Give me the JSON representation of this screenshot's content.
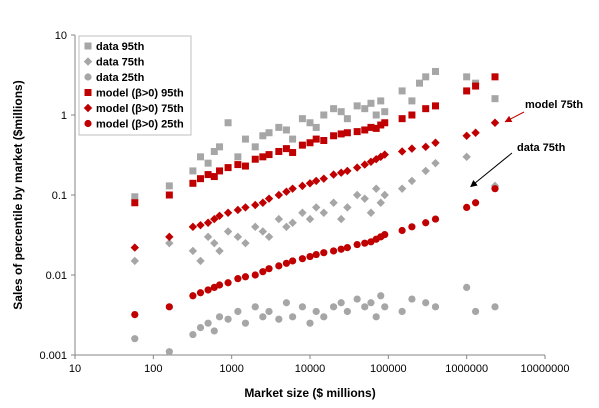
{
  "chart_data": {
    "type": "scatter",
    "xlabel": "Market size ($ millions)",
    "ylabel": "Sales of percentile by market ($millions)",
    "xscale": "log",
    "yscale": "log",
    "xlim": [
      10,
      10000000
    ],
    "ylim": [
      0.001,
      10
    ],
    "x_ticks": [
      "10",
      "100",
      "1000",
      "10000",
      "100000",
      "1000000",
      "10000000"
    ],
    "y_ticks": [
      "0.001",
      "0.01",
      "0.1",
      "1",
      "10"
    ],
    "grid": false,
    "legend_position": "top-left",
    "legend": [
      {
        "label": "data 95th",
        "marker": "square",
        "color": "#a6a6a6"
      },
      {
        "label": "data 75th",
        "marker": "diamond",
        "color": "#a6a6a6"
      },
      {
        "label": "data 25th",
        "marker": "circle",
        "color": "#a6a6a6"
      },
      {
        "label": "model (β>0) 95th",
        "marker": "square",
        "color": "#c00000"
      },
      {
        "label": "model (β>0) 75th",
        "marker": "diamond",
        "color": "#c00000"
      },
      {
        "label": "model (β>0) 25th",
        "marker": "circle",
        "color": "#c00000"
      }
    ],
    "series": [
      {
        "name": "data 95th",
        "color": "#a6a6a6",
        "marker": "square",
        "x": [
          58,
          160,
          320,
          400,
          500,
          600,
          700,
          900,
          1200,
          1500,
          2000,
          2500,
          3000,
          4000,
          5000,
          6000,
          8000,
          10000,
          12000,
          15000,
          20000,
          25000,
          30000,
          40000,
          50000,
          60000,
          70000,
          80000,
          90000,
          150000,
          200000,
          250000,
          300000,
          400000,
          1000000,
          1300000,
          2300000
        ],
        "y": [
          0.095,
          0.13,
          0.2,
          0.3,
          0.25,
          0.35,
          0.4,
          0.8,
          0.3,
          0.5,
          0.4,
          0.55,
          0.6,
          0.7,
          0.65,
          0.5,
          0.9,
          0.8,
          0.7,
          1.0,
          1.2,
          1.1,
          0.9,
          1.3,
          1.2,
          1.4,
          1.0,
          1.5,
          1.1,
          2.0,
          1.5,
          2.5,
          3.0,
          3.5,
          3.0,
          2.5,
          1.6
        ]
      },
      {
        "name": "data 75th",
        "color": "#a6a6a6",
        "marker": "diamond",
        "x": [
          58,
          160,
          320,
          400,
          500,
          600,
          700,
          900,
          1200,
          1500,
          2000,
          2500,
          3000,
          4000,
          5000,
          6000,
          8000,
          10000,
          12000,
          15000,
          20000,
          25000,
          30000,
          40000,
          50000,
          60000,
          70000,
          80000,
          90000,
          150000,
          200000,
          300000,
          400000,
          1000000,
          2300000
        ],
        "y": [
          0.015,
          0.025,
          0.02,
          0.015,
          0.03,
          0.025,
          0.02,
          0.035,
          0.03,
          0.025,
          0.04,
          0.035,
          0.03,
          0.05,
          0.04,
          0.045,
          0.06,
          0.05,
          0.07,
          0.06,
          0.08,
          0.05,
          0.07,
          0.1,
          0.09,
          0.06,
          0.12,
          0.08,
          0.1,
          0.12,
          0.15,
          0.2,
          0.25,
          0.3,
          0.13
        ]
      },
      {
        "name": "data 25th",
        "color": "#a6a6a6",
        "marker": "circle",
        "x": [
          58,
          160,
          320,
          400,
          500,
          600,
          700,
          900,
          1200,
          1500,
          2000,
          2500,
          3000,
          4000,
          5000,
          6000,
          8000,
          10000,
          12000,
          15000,
          20000,
          25000,
          30000,
          40000,
          50000,
          60000,
          70000,
          80000,
          90000,
          150000,
          200000,
          300000,
          400000,
          1000000,
          1300000,
          2300000
        ],
        "y": [
          0.0016,
          0.0011,
          0.0018,
          0.0022,
          0.0025,
          0.002,
          0.003,
          0.0028,
          0.0035,
          0.0025,
          0.004,
          0.003,
          0.0035,
          0.0028,
          0.0045,
          0.003,
          0.004,
          0.0025,
          0.0035,
          0.003,
          0.004,
          0.0045,
          0.0035,
          0.005,
          0.004,
          0.0045,
          0.003,
          0.0055,
          0.004,
          0.0035,
          0.005,
          0.0045,
          0.004,
          0.007,
          0.0035,
          0.004
        ]
      },
      {
        "name": "model (β>0) 95th",
        "color": "#c00000",
        "marker": "square",
        "x": [
          58,
          160,
          320,
          400,
          500,
          600,
          700,
          900,
          1200,
          1500,
          2000,
          2500,
          3000,
          4000,
          5000,
          6000,
          8000,
          10000,
          12000,
          15000,
          20000,
          25000,
          30000,
          40000,
          50000,
          60000,
          70000,
          80000,
          90000,
          150000,
          200000,
          300000,
          400000,
          1000000,
          1300000,
          2300000
        ],
        "y": [
          0.08,
          0.1,
          0.14,
          0.16,
          0.18,
          0.17,
          0.2,
          0.22,
          0.24,
          0.23,
          0.28,
          0.3,
          0.32,
          0.35,
          0.38,
          0.34,
          0.42,
          0.45,
          0.5,
          0.48,
          0.55,
          0.58,
          0.6,
          0.62,
          0.65,
          0.7,
          0.68,
          0.75,
          0.8,
          0.9,
          1.0,
          1.2,
          1.3,
          2.0,
          2.3,
          3.0
        ]
      },
      {
        "name": "model (β>0) 75th",
        "color": "#c00000",
        "marker": "diamond",
        "x": [
          58,
          160,
          320,
          400,
          500,
          600,
          700,
          900,
          1200,
          1500,
          2000,
          2500,
          3000,
          4000,
          5000,
          6000,
          8000,
          10000,
          12000,
          15000,
          20000,
          25000,
          30000,
          40000,
          50000,
          60000,
          70000,
          80000,
          90000,
          150000,
          200000,
          300000,
          400000,
          1000000,
          1300000,
          2300000
        ],
        "y": [
          0.022,
          0.03,
          0.04,
          0.042,
          0.045,
          0.05,
          0.055,
          0.06,
          0.065,
          0.07,
          0.075,
          0.08,
          0.09,
          0.1,
          0.11,
          0.12,
          0.13,
          0.14,
          0.15,
          0.16,
          0.18,
          0.19,
          0.2,
          0.22,
          0.24,
          0.26,
          0.28,
          0.3,
          0.32,
          0.35,
          0.38,
          0.4,
          0.45,
          0.55,
          0.6,
          0.8
        ]
      },
      {
        "name": "model (β>0) 25th",
        "color": "#c00000",
        "marker": "circle",
        "x": [
          58,
          160,
          320,
          400,
          500,
          600,
          700,
          900,
          1200,
          1500,
          2000,
          2500,
          3000,
          4000,
          5000,
          6000,
          8000,
          10000,
          12000,
          15000,
          20000,
          25000,
          30000,
          40000,
          50000,
          60000,
          70000,
          80000,
          90000,
          150000,
          200000,
          300000,
          400000,
          1000000,
          1300000,
          2300000
        ],
        "y": [
          0.0032,
          0.004,
          0.0055,
          0.006,
          0.0065,
          0.007,
          0.0075,
          0.008,
          0.009,
          0.0095,
          0.01,
          0.011,
          0.012,
          0.013,
          0.014,
          0.015,
          0.016,
          0.017,
          0.018,
          0.019,
          0.02,
          0.021,
          0.022,
          0.024,
          0.025,
          0.026,
          0.028,
          0.03,
          0.032,
          0.036,
          0.04,
          0.045,
          0.05,
          0.07,
          0.08,
          0.12
        ]
      }
    ],
    "annotations": [
      {
        "text": "model 75th",
        "point_x": 2600000,
        "point_y": 0.8,
        "arrow_color": "#c00000"
      },
      {
        "text": "data 75th",
        "point_x": 1000000,
        "point_y": 0.12,
        "arrow_color": "#000000"
      }
    ]
  }
}
